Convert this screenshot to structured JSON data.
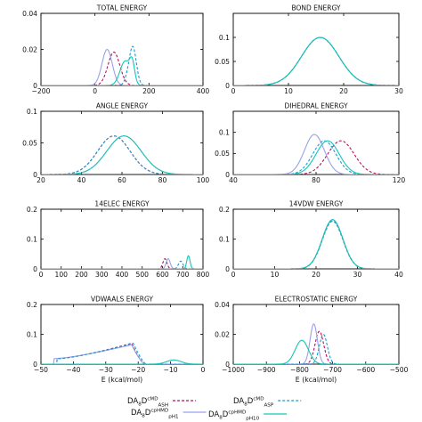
{
  "colors": {
    "asp": "#1a9ad6",
    "ph1": "#9aa0e8",
    "ash": "#b8125c",
    "ph10": "#15c6b0"
  },
  "legend": {
    "row1_left": {
      "base": "DA",
      "sub1": "8",
      "mid": "D",
      "sup": "cMD",
      "sub2": "ASH"
    },
    "row1_right": {
      "base": "DA",
      "sub1": "8",
      "mid": "D",
      "sup": "cMD",
      "sub2": "ASP"
    },
    "row2_left": {
      "base": "DA",
      "sub1": "8",
      "mid": "D",
      "sup": "cpHMD",
      "sub2": "pH1"
    },
    "row2_right": {
      "base": "DA",
      "sub1": "8",
      "mid": "D",
      "sup": "cpHMD",
      "sub2": "pH10"
    }
  },
  "chart_data": [
    {
      "type": "line",
      "title": "TOTAL ENERGY",
      "xlabel": "",
      "xlim": [
        -200,
        400
      ],
      "ylim": [
        0,
        0.04
      ],
      "xticks": [
        "−200",
        "0",
        "200",
        "400"
      ],
      "yticks": [
        "0",
        "0.02",
        "0.04"
      ],
      "series": [
        {
          "key": "ash",
          "dashed": true,
          "gauss": [
            {
              "a": 0.0185,
              "mu": 70,
              "sigma": 22
            }
          ]
        },
        {
          "key": "ph1",
          "dashed": false,
          "gauss": [
            {
              "a": 0.02,
              "mu": 45,
              "sigma": 19
            }
          ]
        },
        {
          "key": "asp",
          "dashed": true,
          "gauss": [
            {
              "a": 0.0215,
              "mu": 140,
              "sigma": 13
            },
            {
              "a": 0.0025,
              "mu": 118,
              "sigma": 10
            }
          ]
        },
        {
          "key": "ph10",
          "dashed": false,
          "gauss": [
            {
              "a": 0.0135,
              "mu": 112,
              "sigma": 19
            },
            {
              "a": 0.01,
              "mu": 138,
              "sigma": 9
            }
          ]
        }
      ]
    },
    {
      "type": "line",
      "title": "BOND ENERGY",
      "xlabel": "",
      "xlim": [
        0,
        40
      ],
      "ylim": [
        0,
        0.15
      ],
      "xticks": [
        "0",
        "10",
        "20",
        "30"
      ],
      "yticks": [
        "0",
        "0.05",
        "0.1"
      ],
      "series": [
        {
          "key": "ash",
          "dashed": true,
          "gauss": [
            {
              "a": 0.1,
              "mu": 21,
              "sigma": 4.5
            }
          ]
        },
        {
          "key": "ph1",
          "dashed": false,
          "gauss": [
            {
              "a": 0.1,
              "mu": 21,
              "sigma": 4.5
            }
          ]
        },
        {
          "key": "asp",
          "dashed": true,
          "gauss": [
            {
              "a": 0.1,
              "mu": 21,
              "sigma": 4.5
            }
          ]
        },
        {
          "key": "ph10",
          "dashed": false,
          "gauss": [
            {
              "a": 0.1,
              "mu": 21,
              "sigma": 4.5
            }
          ]
        }
      ]
    },
    {
      "type": "line",
      "title": "ANGLE ENERGY",
      "xlabel": "",
      "xlim": [
        20,
        100
      ],
      "ylim": [
        0,
        0.1
      ],
      "xticks": [
        "20",
        "40",
        "60",
        "80",
        "100"
      ],
      "yticks": [
        "0",
        "0.05",
        "0.1"
      ],
      "series": [
        {
          "key": "ash",
          "dashed": true,
          "gauss": [
            {
              "a": 0.061,
              "mu": 56,
              "sigma": 8
            }
          ]
        },
        {
          "key": "ph1",
          "dashed": false,
          "gauss": [
            {
              "a": 0.061,
              "mu": 61,
              "sigma": 8.5
            }
          ]
        },
        {
          "key": "asp",
          "dashed": true,
          "gauss": [
            {
              "a": 0.061,
              "mu": 56,
              "sigma": 8
            }
          ]
        },
        {
          "key": "ph10",
          "dashed": false,
          "gauss": [
            {
              "a": 0.061,
              "mu": 61,
              "sigma": 8.5
            }
          ]
        }
      ]
    },
    {
      "type": "line",
      "title": "DIHEDRAL ENERGY",
      "xlabel": "",
      "xlim": [
        40,
        140
      ],
      "ylim": [
        0,
        0.15
      ],
      "xticks": [
        "40",
        "80",
        "120"
      ],
      "yticks": [
        "0",
        "0.05",
        "0.1"
      ],
      "series": [
        {
          "key": "ash",
          "dashed": true,
          "gauss": [
            {
              "a": 0.08,
              "mu": 105,
              "sigma": 8
            }
          ]
        },
        {
          "key": "ph1",
          "dashed": false,
          "gauss": [
            {
              "a": 0.095,
              "mu": 89,
              "sigma": 6
            }
          ]
        },
        {
          "key": "asp",
          "dashed": true,
          "gauss": [
            {
              "a": 0.08,
              "mu": 95,
              "sigma": 7
            }
          ]
        },
        {
          "key": "ph10",
          "dashed": false,
          "gauss": [
            {
              "a": 0.08,
              "mu": 97,
              "sigma": 7
            }
          ]
        }
      ]
    },
    {
      "type": "line",
      "title": "14ELEC ENERGY",
      "xlabel": "",
      "xlim": [
        0,
        800
      ],
      "ylim": [
        0,
        0.2
      ],
      "xticks": [
        "0",
        "100",
        "200",
        "300",
        "400",
        "500",
        "600",
        "700",
        "800"
      ],
      "yticks": [
        "0",
        "0.1",
        "0.2"
      ],
      "series": [
        {
          "key": "ash",
          "dashed": true,
          "gauss": [
            {
              "a": 0.034,
              "mu": 612,
              "sigma": 10
            }
          ]
        },
        {
          "key": "ph1",
          "dashed": false,
          "gauss": [
            {
              "a": 0.034,
              "mu": 628,
              "sigma": 10
            }
          ]
        },
        {
          "key": "asp",
          "dashed": true,
          "gauss": [
            {
              "a": 0.026,
              "mu": 690,
              "sigma": 11
            }
          ]
        },
        {
          "key": "ph10",
          "dashed": false,
          "gauss": [
            {
              "a": 0.044,
              "mu": 728,
              "sigma": 8
            }
          ]
        }
      ]
    },
    {
      "type": "line",
      "title": "14VDW ENERGY",
      "xlabel": "",
      "xlim": [
        0,
        40
      ],
      "ylim": [
        0,
        0.2
      ],
      "xticks": [
        "0",
        "10",
        "20",
        "30",
        "40"
      ],
      "yticks": [
        "0",
        "0.1",
        "0.2"
      ],
      "series": [
        {
          "key": "ash",
          "dashed": true,
          "gauss": [
            {
              "a": 0.16,
              "mu": 24,
              "sigma": 2.5
            }
          ]
        },
        {
          "key": "ph1",
          "dashed": false,
          "gauss": [
            {
              "a": 0.165,
              "mu": 24,
              "sigma": 2.5
            }
          ]
        },
        {
          "key": "asp",
          "dashed": true,
          "gauss": [
            {
              "a": 0.16,
              "mu": 24,
              "sigma": 2.5
            }
          ]
        },
        {
          "key": "ph10",
          "dashed": false,
          "gauss": [
            {
              "a": 0.165,
              "mu": 24,
              "sigma": 2.5
            }
          ]
        }
      ]
    },
    {
      "type": "line",
      "title": "VDWAALS ENERGY",
      "xlabel": "E (kcal/mol)",
      "xlim": [
        -50,
        0
      ],
      "ylim": [
        0,
        0.2
      ],
      "xticks": [
        "−50",
        "−40",
        "−30",
        "−20",
        "−10",
        "0"
      ],
      "yticks": [
        "0",
        "0.1",
        "0.2"
      ],
      "series": [
        {
          "key": "ash",
          "dashed": true,
          "skew": {
            "x0": -43,
            "peak": -22,
            "x1": -18,
            "a": 0.07,
            "y0": 0.02
          }
        },
        {
          "key": "ph1",
          "dashed": false,
          "skew": {
            "x0": -44,
            "peak": -22,
            "x1": -18,
            "a": 0.065,
            "y0": 0.02
          }
        },
        {
          "key": "asp",
          "dashed": true,
          "skew": {
            "x0": -43,
            "peak": -21.5,
            "x1": -17.5,
            "a": 0.07,
            "y0": 0.02
          }
        },
        {
          "key": "ph10",
          "dashed": false,
          "gauss": [
            {
              "a": 0.014,
              "mu": -9,
              "sigma": 2.2
            }
          ]
        }
      ]
    },
    {
      "type": "line",
      "title": "ELECTROSTATIC ENERGY",
      "xlabel": "E (kcal/mol)",
      "xlim": [
        -1000,
        -500
      ],
      "ylim": [
        0,
        0.04
      ],
      "xticks": [
        "−1000",
        "−900",
        "−800",
        "−700",
        "−600",
        "−500"
      ],
      "yticks": [
        "0",
        "0.02",
        "0.04"
      ],
      "series": [
        {
          "key": "ash",
          "dashed": true,
          "gauss": [
            {
              "a": 0.022,
              "mu": -740,
              "sigma": 13
            }
          ]
        },
        {
          "key": "ph1",
          "dashed": false,
          "gauss": [
            {
              "a": 0.027,
              "mu": -757,
              "sigma": 11
            }
          ]
        },
        {
          "key": "asp",
          "dashed": true,
          "gauss": [
            {
              "a": 0.02,
              "mu": -728,
              "sigma": 12
            }
          ]
        },
        {
          "key": "ph10",
          "dashed": false,
          "gauss": [
            {
              "a": 0.016,
              "mu": -793,
              "sigma": 20
            }
          ]
        }
      ]
    }
  ]
}
